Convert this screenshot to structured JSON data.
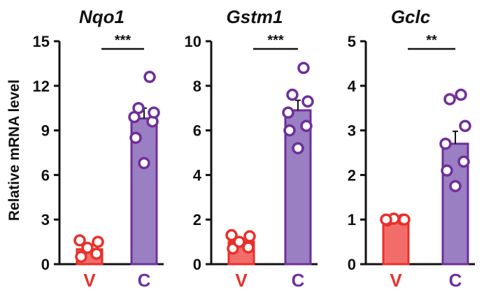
{
  "chart_data": {
    "ylabel": "Relative mRNA level",
    "colors": {
      "V": "#e8302a",
      "C": "#6e2f9a",
      "V_fill": "#f26d6a",
      "C_fill": "#9a7fc2"
    },
    "panels": [
      {
        "type": "bar",
        "title": "Nqo1",
        "categories": [
          "V",
          "C"
        ],
        "values": [
          1.0,
          9.8
        ],
        "errors": [
          0.25,
          0.7
        ],
        "ylim": [
          0,
          15
        ],
        "yticks": [
          "0",
          "3",
          "6",
          "9",
          "12",
          "15"
        ],
        "points": [
          [
            0.5,
            0.7,
            1.1,
            1.5,
            1.6
          ],
          [
            6.8,
            8.5,
            9.6,
            9.9,
            10.2,
            10.5,
            12.6
          ]
        ],
        "significance": "***"
      },
      {
        "type": "bar",
        "title": "Gstm1",
        "categories": [
          "V",
          "C"
        ],
        "values": [
          1.0,
          6.9
        ],
        "errors": [
          0.15,
          0.45
        ],
        "ylim": [
          0,
          10
        ],
        "yticks": [
          "0",
          "2",
          "4",
          "6",
          "8",
          "10"
        ],
        "points": [
          [
            0.7,
            0.75,
            1.0,
            1.25,
            1.3
          ],
          [
            5.2,
            6.0,
            6.2,
            6.8,
            7.3,
            7.6,
            8.8
          ]
        ],
        "significance": "***"
      },
      {
        "type": "bar",
        "title": "Gclc",
        "categories": [
          "V",
          "C"
        ],
        "values": [
          1.0,
          2.7
        ],
        "errors": [
          0.03,
          0.28
        ],
        "ylim": [
          0,
          5
        ],
        "yticks": [
          "0",
          "1",
          "2",
          "3",
          "4",
          "5"
        ],
        "points": [
          [
            0.98,
            1.0,
            1.02,
            1.0,
            1.0
          ],
          [
            1.75,
            2.1,
            2.3,
            2.7,
            3.1,
            3.7,
            3.8
          ]
        ],
        "significance": "**"
      }
    ]
  }
}
